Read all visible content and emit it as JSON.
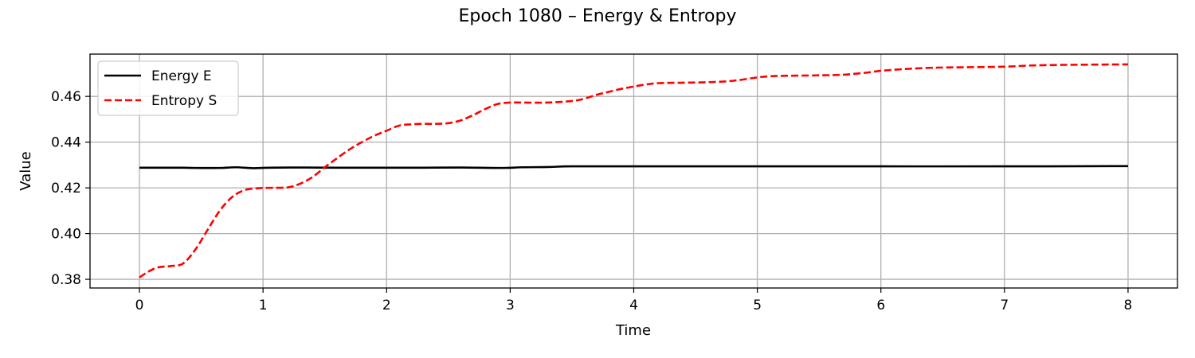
{
  "chart_data": {
    "type": "line",
    "title": "Epoch 1080 – Energy & Entropy",
    "xlabel": "Time",
    "ylabel": "Value",
    "xlim": [
      -0.4,
      8.4
    ],
    "ylim": [
      0.3762,
      0.4785
    ],
    "xticks": [
      0,
      1,
      2,
      3,
      4,
      5,
      6,
      7,
      8
    ],
    "yticks": [
      0.38,
      0.4,
      0.42,
      0.44,
      0.46
    ],
    "ytick_labels": [
      "0.38",
      "0.40",
      "0.42",
      "0.44",
      "0.46"
    ],
    "grid": true,
    "legend_position": "upper-left",
    "series": [
      {
        "name": "Energy E",
        "color": "#000000",
        "style": "solid",
        "x": [
          0,
          0.2,
          0.35,
          0.45,
          0.65,
          0.78,
          0.92,
          1.05,
          1.35,
          1.6,
          2.0,
          2.3,
          2.6,
          2.92,
          3.1,
          3.3,
          3.5,
          4.0,
          5.0,
          6.0,
          7.0,
          8.0
        ],
        "y": [
          0.4288,
          0.4288,
          0.4288,
          0.4287,
          0.4287,
          0.429,
          0.4286,
          0.4288,
          0.4289,
          0.4288,
          0.4288,
          0.4288,
          0.4289,
          0.4287,
          0.429,
          0.4291,
          0.4294,
          0.4294,
          0.4294,
          0.4294,
          0.4294,
          0.4295
        ]
      },
      {
        "name": "Entropy S",
        "color": "#ff0000",
        "style": "dashed",
        "x": [
          0,
          0.07,
          0.15,
          0.25,
          0.35,
          0.45,
          0.55,
          0.65,
          0.75,
          0.85,
          0.95,
          1.05,
          1.2,
          1.3,
          1.4,
          1.5,
          1.6,
          1.7,
          1.8,
          1.9,
          2.0,
          2.1,
          2.2,
          2.3,
          2.4,
          2.5,
          2.6,
          2.7,
          2.8,
          2.9,
          3.0,
          3.1,
          3.3,
          3.5,
          3.6,
          3.7,
          3.8,
          3.9,
          4.0,
          4.1,
          4.2,
          4.4,
          4.6,
          4.8,
          5.0,
          5.1,
          5.2,
          5.5,
          5.7,
          5.9,
          6.0,
          6.2,
          6.4,
          6.6,
          7.0,
          7.2,
          7.5,
          8.0
        ],
        "y": [
          0.3808,
          0.3833,
          0.3852,
          0.3858,
          0.3868,
          0.3928,
          0.4015,
          0.41,
          0.416,
          0.419,
          0.4198,
          0.42,
          0.4202,
          0.4218,
          0.4247,
          0.429,
          0.433,
          0.4368,
          0.44,
          0.4428,
          0.445,
          0.4472,
          0.4478,
          0.448,
          0.448,
          0.4483,
          0.4495,
          0.4518,
          0.4545,
          0.4567,
          0.4573,
          0.4573,
          0.4573,
          0.458,
          0.459,
          0.4607,
          0.462,
          0.4633,
          0.4643,
          0.4652,
          0.4658,
          0.466,
          0.4662,
          0.4668,
          0.4683,
          0.4688,
          0.469,
          0.4692,
          0.4695,
          0.4705,
          0.4712,
          0.472,
          0.4725,
          0.4727,
          0.473,
          0.4735,
          0.4738,
          0.474
        ]
      }
    ]
  }
}
